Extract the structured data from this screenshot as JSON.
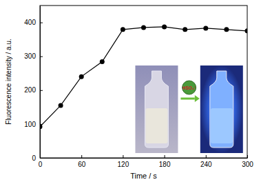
{
  "chart_data": {
    "type": "line",
    "x_label": "Time / s",
    "y_label": "Fluorescence intensity / a.u.",
    "x": [
      0,
      30,
      60,
      90,
      120,
      150,
      180,
      210,
      240,
      270,
      300
    ],
    "values": [
      92,
      155,
      240,
      284,
      379,
      385,
      387,
      379,
      383,
      379,
      375
    ],
    "color": "#000000",
    "marker": "circle",
    "line_style": "solid",
    "xlim": [
      0,
      300
    ],
    "xticks": [
      0,
      60,
      120,
      180,
      240,
      300
    ],
    "ylim": [
      0,
      450
    ],
    "yticks": [
      0,
      100,
      200,
      300,
      400
    ],
    "grid": false,
    "annotation": "HSO₃⁻"
  }
}
